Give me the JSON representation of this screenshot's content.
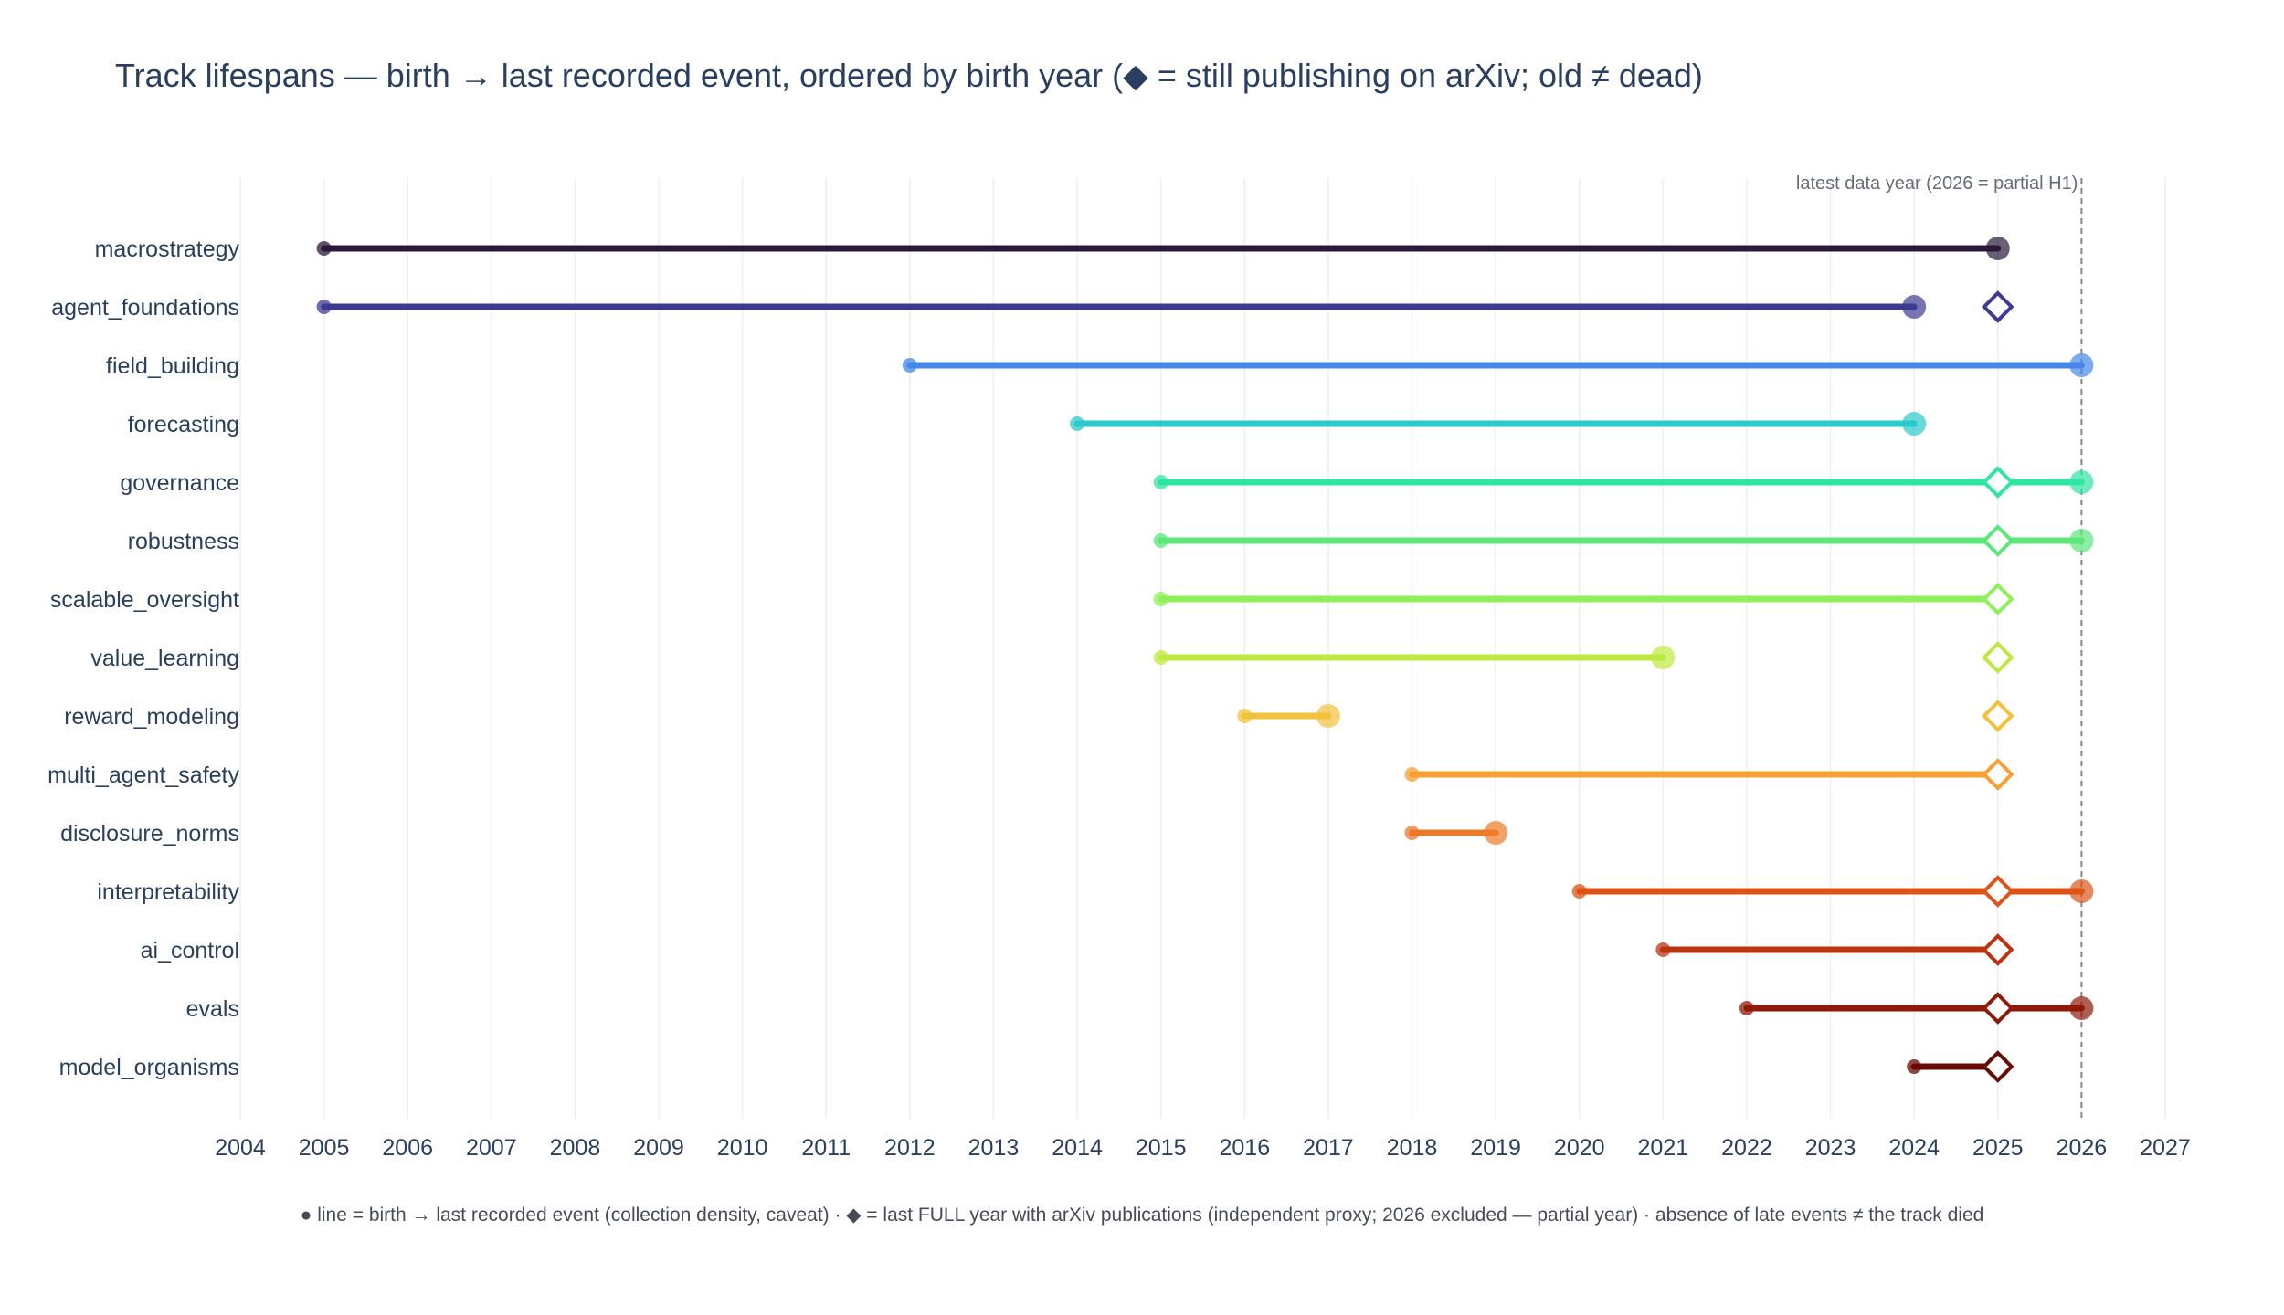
{
  "chart_data": {
    "type": "line",
    "title": "Track lifespans — birth → last recorded event, ordered by birth year (◆ = still publishing on arXiv; old ≠ dead)",
    "xlim": [
      2004,
      2027
    ],
    "x_ticks": [
      2004,
      2005,
      2006,
      2007,
      2008,
      2009,
      2010,
      2011,
      2012,
      2013,
      2014,
      2015,
      2016,
      2017,
      2018,
      2019,
      2020,
      2021,
      2022,
      2023,
      2024,
      2025,
      2026,
      2027
    ],
    "grid": true,
    "reference_line": {
      "x": 2026,
      "label": "latest data year (2026 = partial H1)",
      "style": "dashed"
    },
    "tracks": [
      {
        "name": "macrostrategy",
        "birth": 2005,
        "last_event": 2025,
        "arxiv_last_full_year": null,
        "color": "#2a1938"
      },
      {
        "name": "agent_foundations",
        "birth": 2005,
        "last_event": 2024,
        "arxiv_last_full_year": 2025,
        "color": "#3d3a93"
      },
      {
        "name": "field_building",
        "birth": 2012,
        "last_event": 2026,
        "arxiv_last_full_year": null,
        "color": "#4688e8"
      },
      {
        "name": "forecasting",
        "birth": 2014,
        "last_event": 2024,
        "arxiv_last_full_year": null,
        "color": "#2bc9c9"
      },
      {
        "name": "governance",
        "birth": 2015,
        "last_event": 2026,
        "arxiv_last_full_year": 2025,
        "color": "#2fe6a0"
      },
      {
        "name": "robustness",
        "birth": 2015,
        "last_event": 2026,
        "arxiv_last_full_year": 2025,
        "color": "#5be77a"
      },
      {
        "name": "scalable_oversight",
        "birth": 2015,
        "last_event": 2025,
        "arxiv_last_full_year": 2025,
        "color": "#8ef05a"
      },
      {
        "name": "value_learning",
        "birth": 2015,
        "last_event": 2021,
        "arxiv_last_full_year": 2025,
        "color": "#bde93f"
      },
      {
        "name": "reward_modeling",
        "birth": 2016,
        "last_event": 2017,
        "arxiv_last_full_year": 2025,
        "color": "#f2c13c"
      },
      {
        "name": "multi_agent_safety",
        "birth": 2018,
        "last_event": 2025,
        "arxiv_last_full_year": 2025,
        "color": "#f99f33"
      },
      {
        "name": "disclosure_norms",
        "birth": 2018,
        "last_event": 2019,
        "arxiv_last_full_year": null,
        "color": "#ec7a28"
      },
      {
        "name": "interpretability",
        "birth": 2020,
        "last_event": 2026,
        "arxiv_last_full_year": 2025,
        "color": "#dc5418"
      },
      {
        "name": "ai_control",
        "birth": 2021,
        "last_event": 2025,
        "arxiv_last_full_year": 2025,
        "color": "#bb3410"
      },
      {
        "name": "evals",
        "birth": 2022,
        "last_event": 2026,
        "arxiv_last_full_year": 2025,
        "color": "#8f1a08"
      },
      {
        "name": "model_organisms",
        "birth": 2024,
        "last_event": 2025,
        "arxiv_last_full_year": 2025,
        "color": "#6a0a04"
      }
    ],
    "footnote": "● line = birth → last recorded event (collection density, caveat) · ◆ = last FULL year with arXiv publications (independent proxy; 2026 excluded — partial year) · absence of late events ≠ the track died"
  }
}
